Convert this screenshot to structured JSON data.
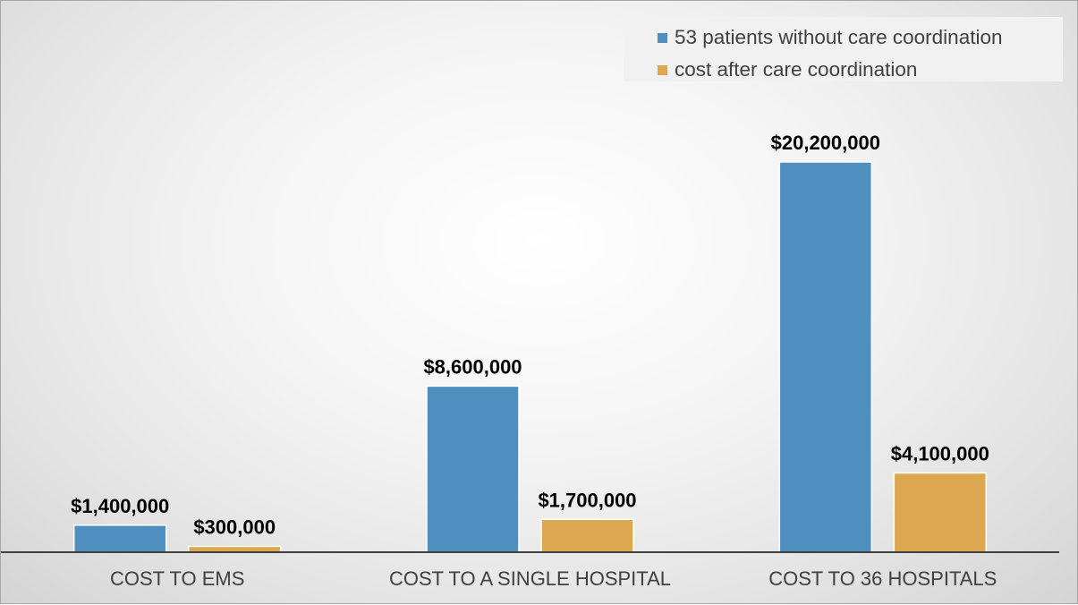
{
  "chart_data": {
    "type": "bar",
    "title": "",
    "xlabel": "",
    "ylabel": "",
    "categories": [
      "COST TO EMS",
      "COST TO A SINGLE HOSPITAL",
      "COST TO 36 HOSPITALS"
    ],
    "series": [
      {
        "name": "53 patients without care coordination",
        "color": "#4f8fc0",
        "values": [
          1400000,
          8600000,
          20200000
        ],
        "labels": [
          "$1,400,000",
          "$8,600,000",
          "$20,200,000"
        ]
      },
      {
        "name": "cost after care coordination",
        "color": "#dca74f",
        "values": [
          300000,
          1700000,
          4100000
        ],
        "labels": [
          "$300,000",
          "$1,700,000",
          "$4,100,000"
        ]
      }
    ],
    "ylim": [
      0,
      26000000
    ],
    "grid": false,
    "legend_position": "top-right"
  }
}
